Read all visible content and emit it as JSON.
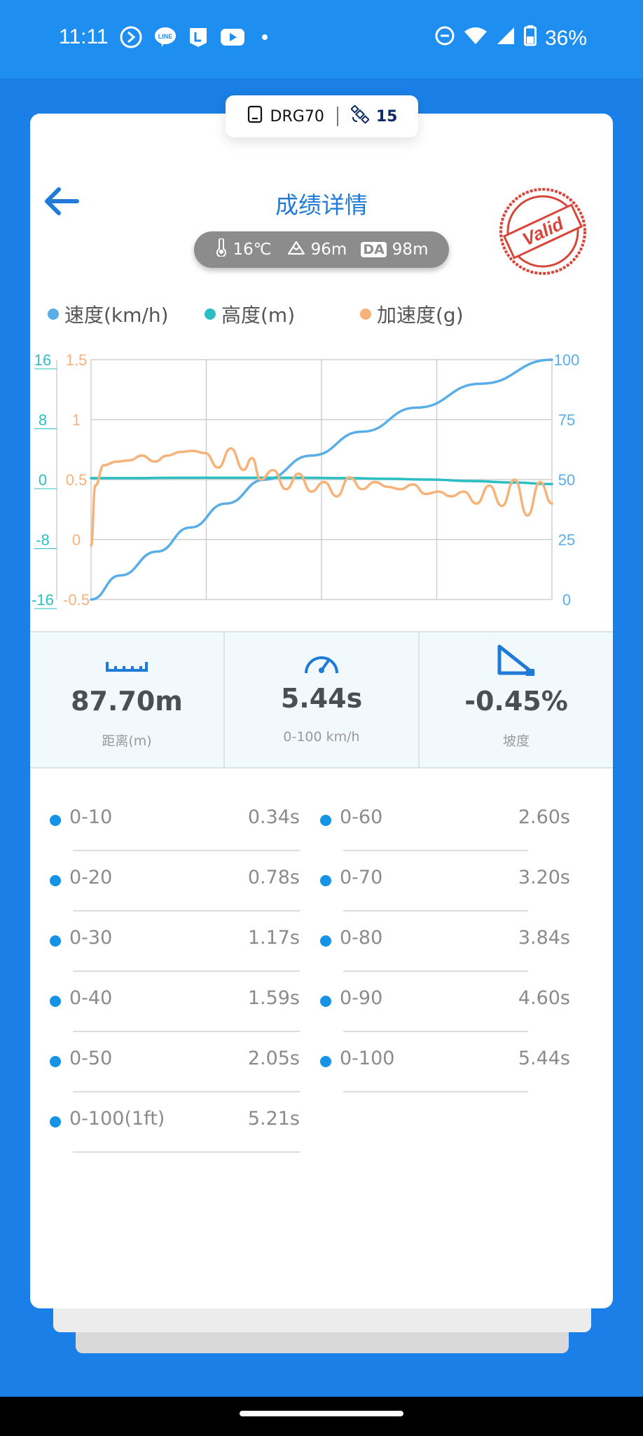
{
  "status_bar": {
    "time": "11:11",
    "battery": "36%",
    "icons_left": [
      "assistant-icon",
      "line-icon",
      "l-app-icon",
      "youtube-icon",
      "dot-icon"
    ],
    "icons_right": [
      "dnd-icon",
      "wifi-icon",
      "signal-icon",
      "battery-icon"
    ]
  },
  "device": {
    "name": "DRG70",
    "satellites": "15"
  },
  "header": {
    "title": "成绩详情",
    "stamp_text": "Valid"
  },
  "weather": {
    "temperature": "16℃",
    "altitude": "96m",
    "da_label": "DA",
    "density_altitude": "98m"
  },
  "legend": [
    {
      "label": "速度(km/h)",
      "color": "#5aaee8"
    },
    {
      "label": "高度(m)",
      "color": "#2bbfc3"
    },
    {
      "label": "加速度(g)",
      "color": "#f7b27a"
    }
  ],
  "chart_data": {
    "type": "line",
    "axes": {
      "altitude_left": {
        "ticks": [
          "16",
          "8",
          "0",
          "-8",
          "-16"
        ],
        "range": [
          -16,
          16
        ],
        "color": "#2bbfc3"
      },
      "accel_left": {
        "ticks": [
          "1.5",
          "1",
          "0.5",
          "0",
          "-0.5"
        ],
        "range": [
          -0.5,
          1.5
        ],
        "color": "#f7b27a"
      },
      "speed_right": {
        "ticks": [
          "100",
          "75",
          "50",
          "25",
          "0"
        ],
        "range": [
          0,
          100
        ],
        "color": "#5aaee8"
      }
    },
    "x_range": [
      0,
      5.44
    ],
    "grid": true,
    "series": [
      {
        "name": "速度(km/h)",
        "axis": "speed_right",
        "color": "#5aaee8",
        "x": [
          0,
          0.34,
          0.78,
          1.17,
          1.59,
          2.05,
          2.6,
          3.2,
          3.84,
          4.6,
          5.44
        ],
        "y": [
          0,
          10,
          20,
          30,
          40,
          50,
          60,
          70,
          80,
          90,
          100
        ]
      },
      {
        "name": "高度(m)",
        "axis": "altitude_left",
        "color": "#2bbfc3",
        "x": [
          0,
          0.5,
          1.0,
          1.5,
          2.0,
          2.5,
          3.0,
          3.5,
          4.0,
          4.5,
          5.0,
          5.44
        ],
        "y": [
          0.2,
          0.2,
          0.25,
          0.25,
          0.25,
          0.25,
          0.2,
          0.1,
          0.0,
          -0.2,
          -0.4,
          -0.6
        ]
      },
      {
        "name": "加速度(g)",
        "axis": "accel_left",
        "color": "#f7b27a",
        "x": [
          0,
          0.05,
          0.15,
          0.3,
          0.45,
          0.6,
          0.75,
          0.9,
          1.05,
          1.2,
          1.35,
          1.5,
          1.65,
          1.8,
          1.9,
          2.0,
          2.15,
          2.3,
          2.45,
          2.6,
          2.75,
          2.9,
          3.05,
          3.2,
          3.35,
          3.5,
          3.65,
          3.8,
          3.95,
          4.1,
          4.25,
          4.4,
          4.55,
          4.7,
          4.85,
          5.0,
          5.15,
          5.3,
          5.44
        ],
        "y": [
          -0.05,
          0.45,
          0.62,
          0.65,
          0.66,
          0.7,
          0.65,
          0.7,
          0.73,
          0.74,
          0.72,
          0.6,
          0.76,
          0.58,
          0.68,
          0.5,
          0.58,
          0.42,
          0.55,
          0.4,
          0.48,
          0.36,
          0.52,
          0.42,
          0.48,
          0.44,
          0.42,
          0.46,
          0.38,
          0.4,
          0.36,
          0.4,
          0.3,
          0.45,
          0.28,
          0.5,
          0.2,
          0.48,
          0.3
        ]
      }
    ]
  },
  "stats": [
    {
      "icon": "ruler-icon",
      "value": "87.70m",
      "label": "距离(m)"
    },
    {
      "icon": "speedometer-icon",
      "value": "5.44s",
      "label": "0-100 km/h"
    },
    {
      "icon": "slope-icon",
      "value": "-0.45%",
      "label": "坡度"
    }
  ],
  "splits_left": [
    {
      "name": "0-10",
      "time": "0.34s"
    },
    {
      "name": "0-20",
      "time": "0.78s"
    },
    {
      "name": "0-30",
      "time": "1.17s"
    },
    {
      "name": "0-40",
      "time": "1.59s"
    },
    {
      "name": "0-50",
      "time": "2.05s"
    },
    {
      "name": "0-100(1ft)",
      "time": "5.21s"
    }
  ],
  "splits_right": [
    {
      "name": "0-60",
      "time": "2.60s"
    },
    {
      "name": "0-70",
      "time": "3.20s"
    },
    {
      "name": "0-80",
      "time": "3.84s"
    },
    {
      "name": "0-90",
      "time": "4.60s"
    },
    {
      "name": "0-100",
      "time": "5.44s"
    }
  ]
}
